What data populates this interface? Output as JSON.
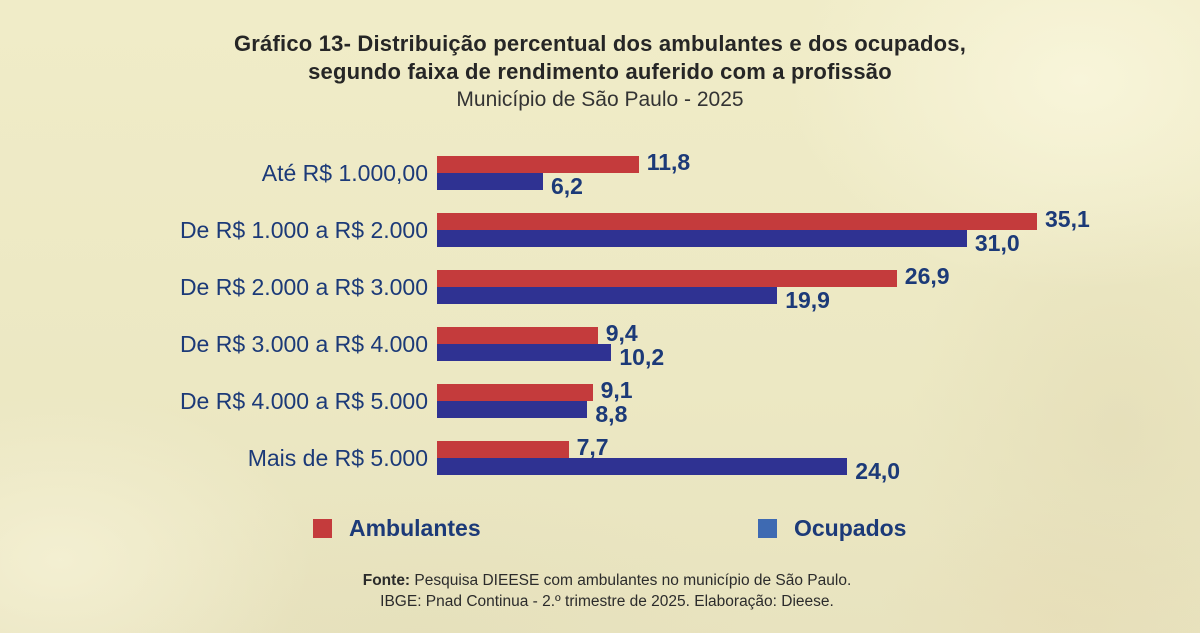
{
  "title": {
    "line1": "Gráfico 13- Distribuição percentual dos ambulantes e dos ocupados,",
    "line2": "segundo faixa de rendimento auferido com a profissão",
    "line3": "Município de São Paulo - 2025"
  },
  "chart_data": {
    "type": "bar",
    "orientation": "horizontal",
    "title": "Gráfico 13- Distribuição percentual dos ambulantes e dos ocupados, segundo faixa de rendimento auferido com a profissão",
    "subtitle": "Município de São Paulo - 2025",
    "categories": [
      "Até R$ 1.000,00",
      "De R$ 1.000 a R$ 2.000",
      "De R$ 2.000 a R$ 3.000",
      "De R$ 3.000 a R$ 4.000",
      "De R$ 4.000 a R$ 5.000",
      "Mais de R$ 5.000"
    ],
    "series": [
      {
        "name": "Ambulantes",
        "color": "#c43b3c",
        "values": [
          11.8,
          35.1,
          26.9,
          9.4,
          9.1,
          7.7
        ],
        "value_labels": [
          "11,8",
          "35,1",
          "26,9",
          "9,4",
          "9,1",
          "7,7"
        ]
      },
      {
        "name": "Ocupados",
        "color": "#2f3292",
        "legend_color": "#3e6ab2",
        "values": [
          6.2,
          31.0,
          19.9,
          10.2,
          8.8,
          24.0
        ],
        "value_labels": [
          "6,2",
          "31,0",
          "19,9",
          "10,2",
          "8,8",
          "24,0"
        ]
      }
    ],
    "xlim": [
      0,
      36
    ],
    "grid": false,
    "legend_position": "bottom",
    "category_label_color": "#1c3a78",
    "value_label_color": "#1c3a78"
  },
  "legend": {
    "items": [
      {
        "label": "Ambulantes",
        "color": "#c43b3c"
      },
      {
        "label": "Ocupados",
        "color": "#3e6ab2"
      }
    ]
  },
  "footer": {
    "line1_bold": "Fonte:",
    "line1_rest": " Pesquisa DIEESE com ambulantes no município de São Paulo.",
    "line2": "IBGE: Pnad Continua - 2.º trimestre de 2025. Elaboração: Dieese."
  }
}
